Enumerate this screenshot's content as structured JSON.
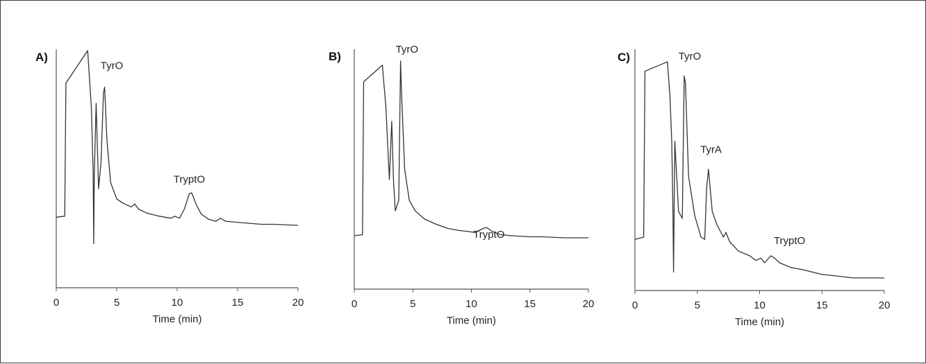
{
  "chart_data": [
    {
      "type": "line",
      "panel_label": "A)",
      "xlabel": "Time (min)",
      "ylabel": "",
      "xlim": [
        0,
        20
      ],
      "ylim": [
        0,
        100
      ],
      "xticks": [
        0,
        5,
        10,
        15,
        20
      ],
      "grid": false,
      "annotations": [
        {
          "text": "TyrO",
          "x": 4.6,
          "y": 91
        },
        {
          "text": "TryptO",
          "x": 11.0,
          "y": 35
        }
      ],
      "series": [
        {
          "x": [
            0,
            0.7,
            0.8,
            2.6,
            2.9,
            3.05,
            3.1,
            3.15,
            3.3,
            3.5,
            3.7,
            3.9,
            4.0,
            4.2,
            4.5,
            5,
            5.5,
            6.2,
            6.5,
            6.8,
            7.5,
            8.5,
            9.5,
            9.8,
            10.2,
            10.6,
            11,
            11.2,
            11.6,
            12,
            12.6,
            13.2,
            13.6,
            14,
            15,
            16,
            17,
            18,
            20
          ],
          "y": [
            18,
            18.5,
            84,
            100,
            72,
            40,
            5,
            40,
            74,
            32,
            45,
            79,
            82,
            55,
            35,
            27,
            25,
            23,
            24.5,
            22,
            20,
            18.5,
            17.5,
            18.5,
            17.5,
            22,
            29.5,
            30,
            24,
            19.5,
            17,
            16,
            17.5,
            16,
            15.5,
            15,
            14.5,
            14.5,
            14
          ]
        }
      ]
    },
    {
      "type": "line",
      "panel_label": "B)",
      "xlabel": "Time (min)",
      "ylabel": "",
      "xlim": [
        0,
        20
      ],
      "ylim": [
        0,
        100
      ],
      "xticks": [
        0,
        5,
        10,
        15,
        20
      ],
      "grid": false,
      "annotations": [
        {
          "text": "TyrO",
          "x": 4.5,
          "y": 101
        },
        {
          "text": "TryptO",
          "x": 11.5,
          "y": 12
        }
      ],
      "series": [
        {
          "x": [
            0,
            0.7,
            0.8,
            2.4,
            2.7,
            3.0,
            3.2,
            3.35,
            3.5,
            3.8,
            3.95,
            4.05,
            4.3,
            4.7,
            5.2,
            6,
            7,
            8,
            9,
            9.8,
            10.3,
            11,
            11.3,
            11.8,
            12.5,
            13.5,
            15,
            16,
            18,
            20
          ],
          "y": [
            13,
            13.5,
            87,
            95,
            75,
            40,
            68,
            40,
            25,
            30,
            97,
            80,
            45,
            30,
            25,
            21,
            18.5,
            16.5,
            15.5,
            15,
            14.5,
            16.5,
            17,
            15,
            13.5,
            13,
            12.5,
            12.5,
            12,
            12
          ]
        }
      ]
    },
    {
      "type": "line",
      "panel_label": "C)",
      "xlabel": "Time (min)",
      "ylabel": "",
      "xlim": [
        0,
        20
      ],
      "ylim": [
        0,
        100
      ],
      "xticks": [
        0,
        5,
        10,
        15,
        20
      ],
      "grid": false,
      "annotations": [
        {
          "text": "TyrO",
          "x": 4.4,
          "y": 95
        },
        {
          "text": "TyrA",
          "x": 6.1,
          "y": 55
        },
        {
          "text": "TryptO",
          "x": 12.4,
          "y": 16
        }
      ],
      "series": [
        {
          "x": [
            0,
            0.7,
            0.8,
            2.6,
            2.8,
            2.95,
            3.05,
            3.1,
            3.2,
            3.5,
            3.8,
            3.95,
            4.05,
            4.3,
            4.8,
            5.3,
            5.6,
            5.75,
            5.9,
            6.2,
            6.6,
            7.1,
            7.3,
            7.6,
            8.3,
            9.2,
            9.7,
            10.1,
            10.4,
            10.9,
            11.2,
            11.6,
            12.5,
            13.5,
            15,
            16,
            17.5,
            20
          ],
          "y": [
            18,
            19,
            90,
            94,
            80,
            60,
            30,
            4,
            60,
            30,
            27,
            88,
            85,
            45,
            28,
            19,
            18,
            40,
            48,
            30,
            24,
            19,
            21,
            17,
            13,
            11,
            9,
            10,
            8,
            11,
            10,
            8,
            6,
            5,
            3,
            2.5,
            1.5,
            1.5
          ]
        }
      ]
    }
  ]
}
